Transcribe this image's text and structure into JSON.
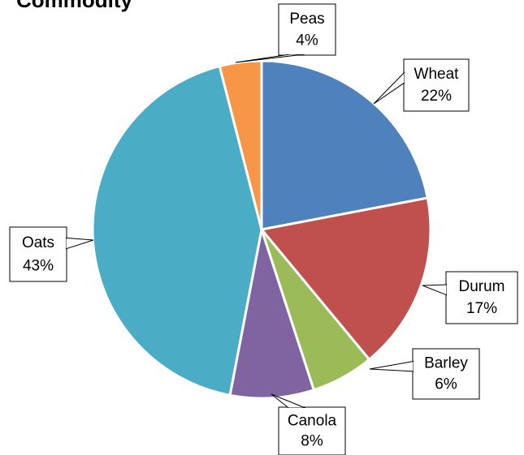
{
  "chart_data": {
    "type": "pie",
    "title": "Commodity",
    "categories": [
      "Wheat",
      "Durum",
      "Barley",
      "Canola",
      "Oats",
      "Peas"
    ],
    "values": [
      22,
      17,
      6,
      8,
      43,
      4
    ],
    "value_labels": [
      "22%",
      "17%",
      "6%",
      "8%",
      "43%",
      "4%"
    ],
    "colors": [
      "#4f81bd",
      "#c0504d",
      "#9bbb59",
      "#8064a2",
      "#4bacc6",
      "#f79646"
    ]
  }
}
